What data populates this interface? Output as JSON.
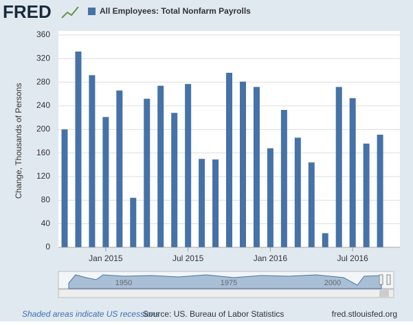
{
  "header": {
    "logo": "FRED"
  },
  "chart_data": {
    "type": "bar",
    "series": [
      {
        "name": "All Employees: Total Nonfarm Payrolls",
        "color": "#4572a7",
        "values": [
          200,
          332,
          292,
          221,
          266,
          84,
          252,
          274,
          228,
          277,
          150,
          149,
          296,
          281,
          272,
          168,
          233,
          186,
          144,
          24,
          272,
          253,
          176,
          191
        ]
      }
    ],
    "categories": [
      null,
      null,
      null,
      "Jan 2015",
      null,
      null,
      null,
      null,
      null,
      "Jul 2015",
      null,
      null,
      null,
      null,
      null,
      "Jan 2016",
      null,
      null,
      null,
      null,
      null,
      "Jul 2016",
      null,
      null
    ],
    "y_label": "Change, Thousands of Persons",
    "ylim": [
      0,
      360
    ],
    "yticks": [
      0,
      40,
      80,
      120,
      160,
      200,
      240,
      280,
      320,
      360
    ],
    "grid": true
  },
  "navigator": {
    "labels": [
      "1950",
      "1975",
      "2000"
    ]
  },
  "footer": {
    "note": "Shaded areas indicate US recessions",
    "source": "Source: US. Bureau of Labor Statistics",
    "site": "fred.stlouisfed.org"
  }
}
